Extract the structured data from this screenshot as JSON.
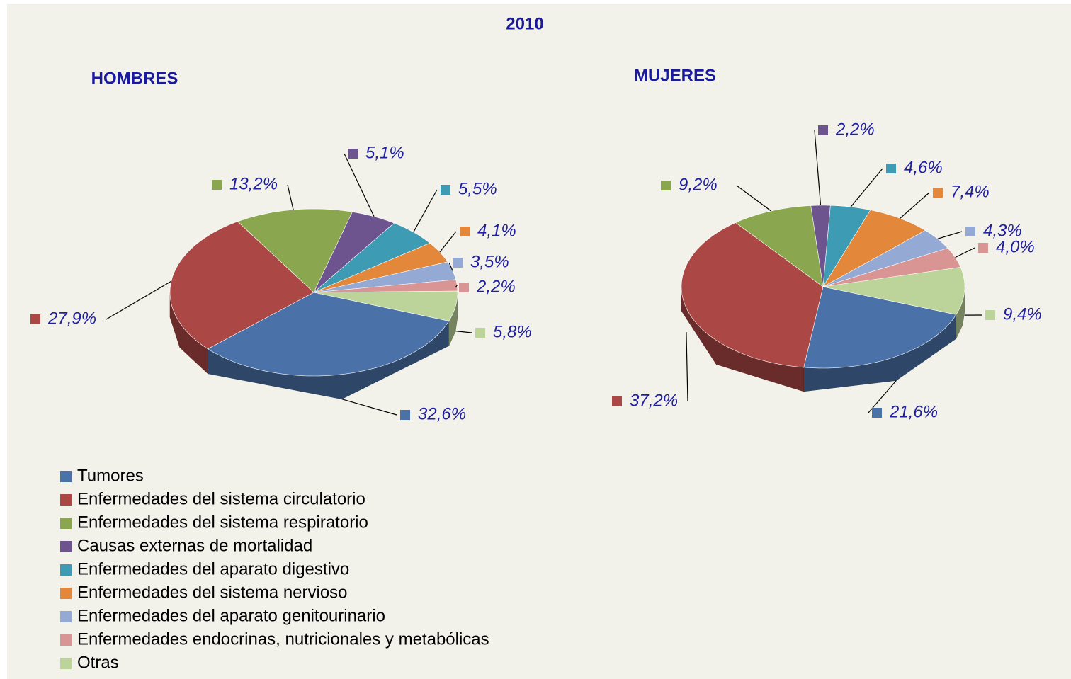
{
  "title": "2010",
  "categories": [
    "Tumores",
    "Enfermedades del sistema circulatorio",
    "Enfermedades del sistema respiratorio",
    "Causas externas de mortalidad",
    "Enfermedades del aparato digestivo",
    "Enfermedades del sistema nervioso",
    "Enfermedades del aparato genitourinario",
    "Enfermedades endocrinas, nutricionales y metabólicas",
    "Otras"
  ],
  "colors": [
    "#4a72a8",
    "#ab4744",
    "#8aa64e",
    "#6e548f",
    "#3d9bb3",
    "#e3873a",
    "#94aad4",
    "#d99594",
    "#bcd39a"
  ],
  "chart_data": [
    {
      "type": "pie",
      "title": "HOMBRES",
      "values": [
        32.6,
        27.9,
        13.2,
        5.1,
        5.5,
        4.1,
        3.5,
        2.2,
        5.8
      ],
      "value_labels": [
        "32,6%",
        "27,9%",
        "13,2%",
        "5,1%",
        "5,5%",
        "4,1%",
        "3,5%",
        "2,2%",
        "5,8%"
      ]
    },
    {
      "type": "pie",
      "title": "MUJERES",
      "values": [
        21.6,
        37.2,
        9.2,
        2.2,
        4.6,
        7.4,
        4.3,
        4.0,
        9.4
      ],
      "value_labels": [
        "21,6%",
        "37,2%",
        "9,2%",
        "2,2%",
        "4,6%",
        "7,4%",
        "4,3%",
        "4,0%",
        "9,4%"
      ]
    }
  ]
}
